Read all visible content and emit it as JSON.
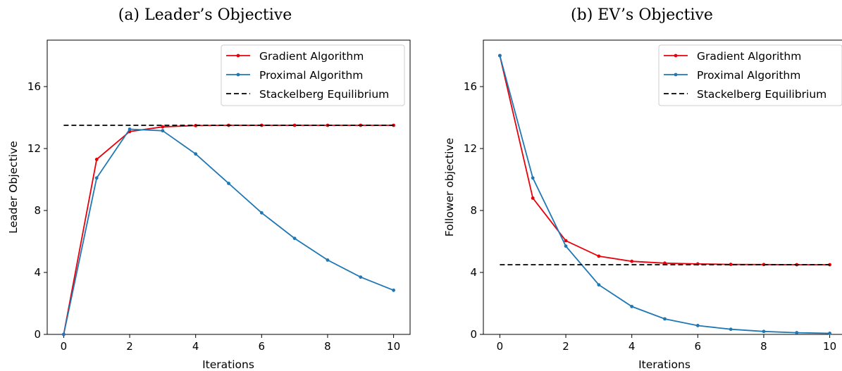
{
  "chart_data": [
    {
      "type": "line",
      "title": "(a) Leader’s Objective",
      "xlabel": "Iterations",
      "ylabel": "Leader Objective",
      "x": [
        0,
        1,
        2,
        3,
        4,
        5,
        6,
        7,
        8,
        9,
        10
      ],
      "xlim": [
        -0.5,
        10.5
      ],
      "ylim": [
        0,
        19
      ],
      "xticks": [
        0,
        2,
        4,
        6,
        8,
        10
      ],
      "yticks": [
        0,
        4,
        8,
        12,
        16
      ],
      "grid": false,
      "legend_position": "top-right",
      "series": [
        {
          "name": "Gradient Algorithm",
          "color": "#e8000b",
          "style": "solid-dot",
          "values": [
            0,
            11.3,
            13.1,
            13.4,
            13.48,
            13.5,
            13.5,
            13.5,
            13.5,
            13.5,
            13.5
          ]
        },
        {
          "name": "Proximal Algorithm",
          "color": "#1f77b4",
          "style": "solid-dot",
          "values": [
            0,
            10.1,
            13.25,
            13.15,
            11.65,
            9.75,
            7.85,
            6.2,
            4.8,
            3.7,
            2.85
          ]
        },
        {
          "name": "Stackelberg Equilibrium",
          "color": "#000000",
          "style": "dashed",
          "values": [
            13.5,
            13.5,
            13.5,
            13.5,
            13.5,
            13.5,
            13.5,
            13.5,
            13.5,
            13.5,
            13.5
          ]
        }
      ]
    },
    {
      "type": "line",
      "title": "(b) EV’s Objective",
      "xlabel": "Iterations",
      "ylabel": "Follower objective",
      "x": [
        0,
        1,
        2,
        3,
        4,
        5,
        6,
        7,
        8,
        9,
        10
      ],
      "xlim": [
        -0.5,
        10.5
      ],
      "ylim": [
        0,
        19
      ],
      "xticks": [
        0,
        2,
        4,
        6,
        8,
        10
      ],
      "yticks": [
        0,
        4,
        8,
        12,
        16
      ],
      "grid": false,
      "legend_position": "top-right",
      "series": [
        {
          "name": "Gradient Algorithm",
          "color": "#e8000b",
          "style": "solid-dot",
          "values": [
            18,
            8.8,
            6.05,
            5.05,
            4.72,
            4.6,
            4.55,
            4.52,
            4.51,
            4.5,
            4.5
          ]
        },
        {
          "name": "Proximal Algorithm",
          "color": "#1f77b4",
          "style": "solid-dot",
          "values": [
            18,
            10.1,
            5.7,
            3.2,
            1.8,
            1.0,
            0.57,
            0.33,
            0.19,
            0.11,
            0.07
          ]
        },
        {
          "name": "Stackelberg Equilibrium",
          "color": "#000000",
          "style": "dashed",
          "values": [
            4.5,
            4.5,
            4.5,
            4.5,
            4.5,
            4.5,
            4.5,
            4.5,
            4.5,
            4.5,
            4.5
          ]
        }
      ]
    }
  ]
}
